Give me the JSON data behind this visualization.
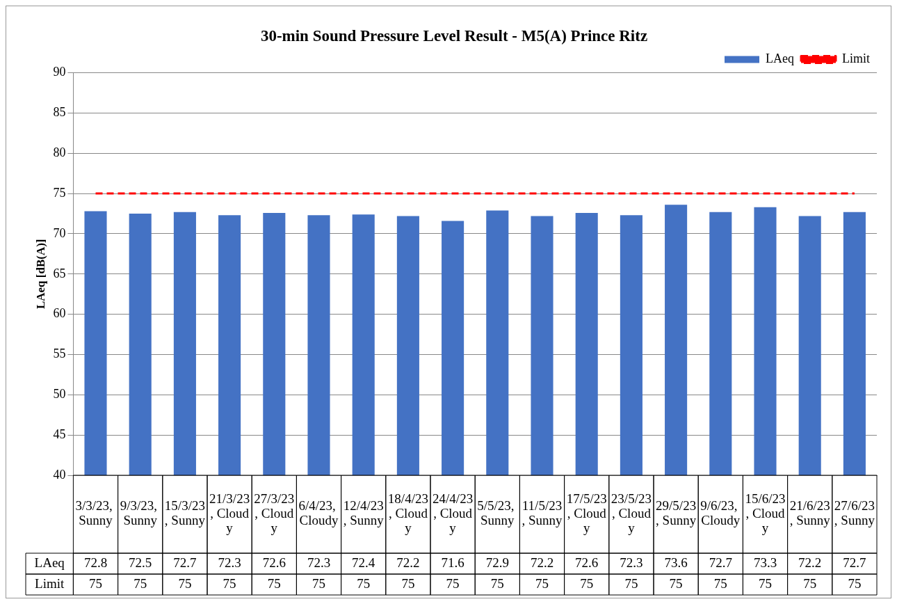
{
  "chart_data": {
    "type": "bar",
    "title": "30-min Sound Pressure Level Result - M5(A) Prince Ritz",
    "ylabel": "LAeq [dB(A)]",
    "categories": [
      "3/3/23, Sunny",
      "9/3/23, Sunny",
      "15/3/23, Sunny",
      "21/3/23, Cloudy",
      "27/3/23, Cloudy",
      "6/4/23, Cloudy",
      "12/4/23, Sunny",
      "18/4/23, Cloudy",
      "24/4/23, Cloudy",
      "5/5/23, Sunny",
      "11/5/23, Sunny",
      "17/5/23, Cloudy",
      "23/5/23, Cloudy",
      "29/5/23, Sunny",
      "9/6/23, Cloudy",
      "15/6/23, Cloudy",
      "21/6/23, Sunny",
      "27/6/23, Sunny"
    ],
    "series": [
      {
        "name": "LAeq",
        "color": "#4472c4",
        "values": [
          72.8,
          72.5,
          72.7,
          72.3,
          72.6,
          72.3,
          72.4,
          72.2,
          71.6,
          72.9,
          72.2,
          72.6,
          72.3,
          73.6,
          72.7,
          73.3,
          72.2,
          72.7
        ]
      },
      {
        "name": "Limit",
        "type": "line",
        "color": "#ff0000",
        "line_style": "dashed",
        "marker": "none",
        "values": [
          75,
          75,
          75,
          75,
          75,
          75,
          75,
          75,
          75,
          75,
          75,
          75,
          75,
          75,
          75,
          75,
          75,
          75
        ]
      }
    ],
    "ylim": [
      40,
      90
    ],
    "yticks": [
      40,
      45,
      50,
      55,
      60,
      65,
      70,
      75,
      80,
      85,
      90
    ],
    "grid": "y",
    "legend": "top right",
    "data_labels": true
  }
}
